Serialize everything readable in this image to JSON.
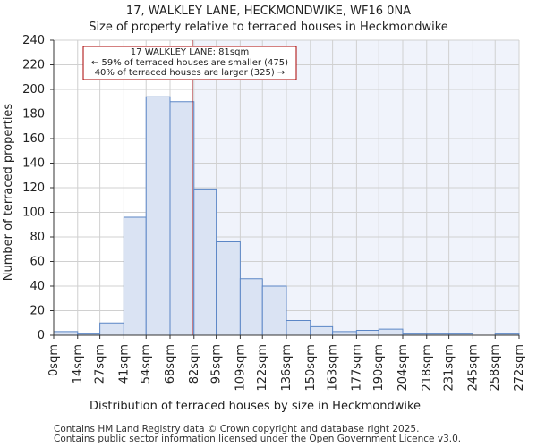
{
  "chart_data": {
    "type": "bar",
    "title": "17, WALKLEY LANE, HECKMONDWIKE, WF16 0NA",
    "subtitle": "Size of property relative to terraced houses in Heckmondwike",
    "xlabel": "Distribution of terraced houses by size in Heckmondwike",
    "ylabel": "Number of terraced properties",
    "bin_edges": [
      0,
      14,
      27,
      41,
      54,
      68,
      82,
      95,
      109,
      122,
      136,
      150,
      163,
      177,
      190,
      204,
      218,
      231,
      245,
      258,
      272
    ],
    "tick_labels": [
      "0sqm",
      "14sqm",
      "27sqm",
      "41sqm",
      "54sqm",
      "68sqm",
      "82sqm",
      "95sqm",
      "109sqm",
      "122sqm",
      "136sqm",
      "150sqm",
      "163sqm",
      "177sqm",
      "190sqm",
      "204sqm",
      "218sqm",
      "231sqm",
      "245sqm",
      "258sqm",
      "272sqm"
    ],
    "values": [
      3,
      1,
      10,
      96,
      194,
      190,
      119,
      76,
      46,
      40,
      12,
      7,
      3,
      4,
      5,
      1,
      1,
      1,
      0,
      1
    ],
    "ylim": [
      0,
      240
    ],
    "yticks": [
      0,
      20,
      40,
      60,
      80,
      100,
      120,
      140,
      160,
      180,
      200,
      220,
      240
    ],
    "grid": true,
    "marker_value": 81,
    "annotation": {
      "line1": "17 WALKLEY LANE: 81sqm",
      "line2": "← 59% of terraced houses are smaller (475)",
      "line3": "40% of terraced houses are larger (325) →"
    },
    "colors": {
      "bar_fill": "#dae3f3",
      "bar_stroke": "#5b86c6",
      "marker": "#aa0000",
      "highlight_bg": "#f0f3fb",
      "grid": "#d0d0d0"
    }
  },
  "footer": {
    "line1": "Contains HM Land Registry data © Crown copyright and database right 2025.",
    "line2": "Contains public sector information licensed under the Open Government Licence v3.0."
  }
}
